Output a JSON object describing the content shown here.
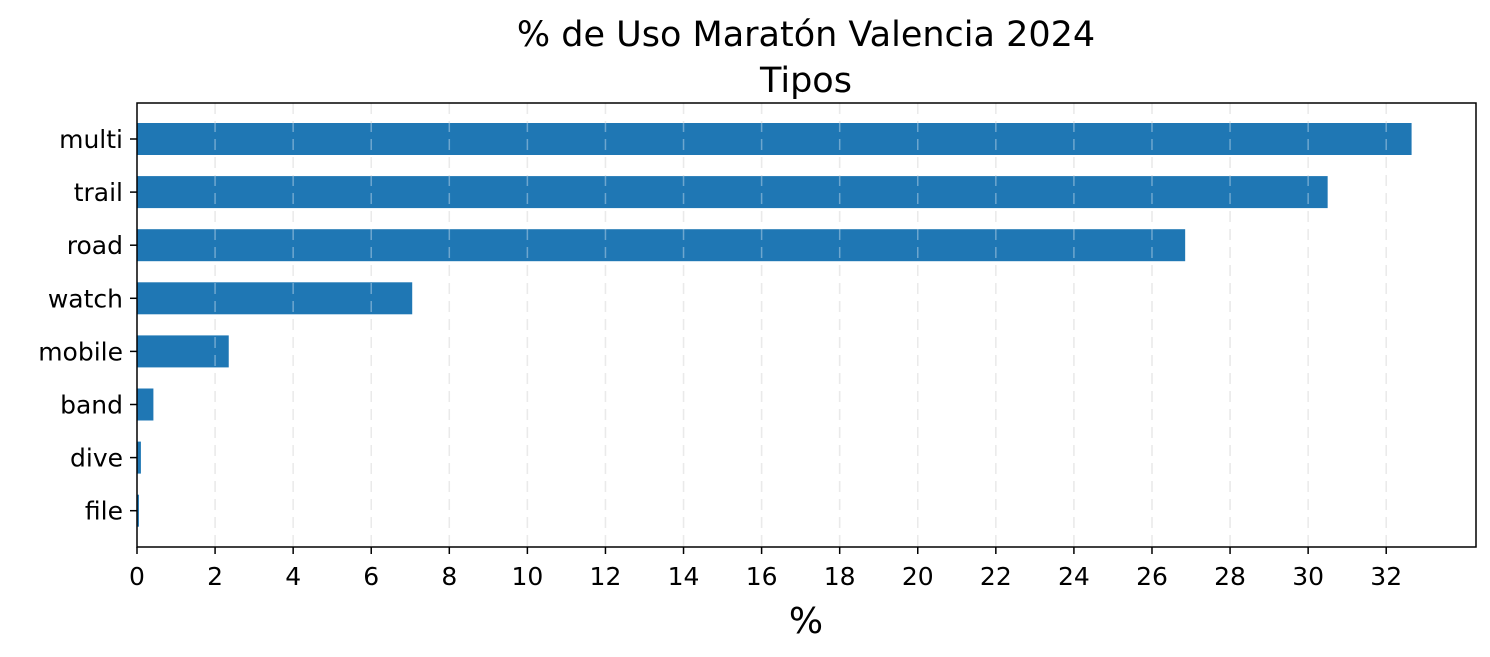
{
  "chart_data": {
    "type": "bar",
    "orientation": "horizontal",
    "title": "% de Uso Maratón Valencia 2024",
    "subtitle": "Tipos",
    "xlabel": "%",
    "ylabel": "",
    "categories": [
      "multi",
      "trail",
      "road",
      "watch",
      "mobile",
      "band",
      "dive",
      "file"
    ],
    "values": [
      32.65,
      30.5,
      26.85,
      7.05,
      2.35,
      0.42,
      0.1,
      0.05
    ],
    "xlim": [
      0,
      34.3
    ],
    "xticks": [
      "0",
      "2",
      "4",
      "6",
      "8",
      "10",
      "12",
      "14",
      "16",
      "18",
      "20",
      "22",
      "24",
      "26",
      "28",
      "30",
      "32"
    ],
    "grid": "x-dashed",
    "bar_color": "#1f77b4",
    "grid_color": "#b0b0b0"
  }
}
